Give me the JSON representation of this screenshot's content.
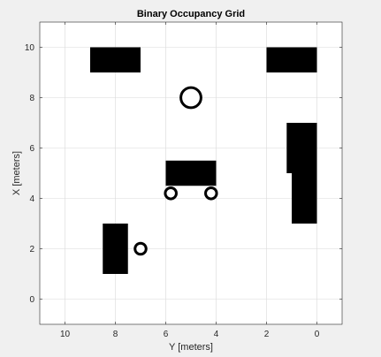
{
  "chart_data": {
    "type": "occupancy-grid",
    "title": "Binary Occupancy Grid",
    "xlabel": "Y [meters]",
    "ylabel": "X [meters]",
    "xlim": [
      11,
      -1
    ],
    "ylim": [
      -1,
      11
    ],
    "x_reversed": true,
    "xticks": [
      10,
      8,
      6,
      4,
      2,
      0
    ],
    "yticks": [
      0,
      2,
      4,
      6,
      8,
      10
    ],
    "grid": true,
    "colors": {
      "occupied": "#000000",
      "free": "#ffffff",
      "figure_background": "#f0f0f0",
      "grid": "#d9d9d9"
    },
    "occupied_rectangles": [
      {
        "name": "obstacle-top-left",
        "x0": 7.0,
        "x1": 9.0,
        "y0": 9.0,
        "y1": 10.0
      },
      {
        "name": "obstacle-top-right",
        "x0": 0.0,
        "x1": 2.0,
        "y0": 9.0,
        "y1": 10.0
      },
      {
        "name": "obstacle-center-table",
        "x0": 4.0,
        "x1": 6.0,
        "y0": 4.5,
        "y1": 5.5
      },
      {
        "name": "obstacle-right-upper",
        "x0": 0.0,
        "x1": 1.2,
        "y0": 5.0,
        "y1": 7.0
      },
      {
        "name": "obstacle-right-lower",
        "x0": 0.0,
        "x1": 1.0,
        "y0": 3.0,
        "y1": 5.0
      },
      {
        "name": "obstacle-bottom-left",
        "x0": 7.5,
        "x1": 8.5,
        "y0": 1.0,
        "y1": 3.0
      }
    ],
    "occupied_rings": [
      {
        "name": "ring-center-large",
        "x": 5.0,
        "y": 8.0,
        "r": 0.4
      },
      {
        "name": "ring-table-left",
        "x": 5.8,
        "y": 4.2,
        "r": 0.22
      },
      {
        "name": "ring-table-right",
        "x": 4.2,
        "y": 4.2,
        "r": 0.22
      },
      {
        "name": "ring-bottom-left",
        "x": 7.0,
        "y": 2.0,
        "r": 0.22
      }
    ],
    "boundary": {
      "x0": 0,
      "x1": 10,
      "y0": 0,
      "y1": 10
    }
  }
}
